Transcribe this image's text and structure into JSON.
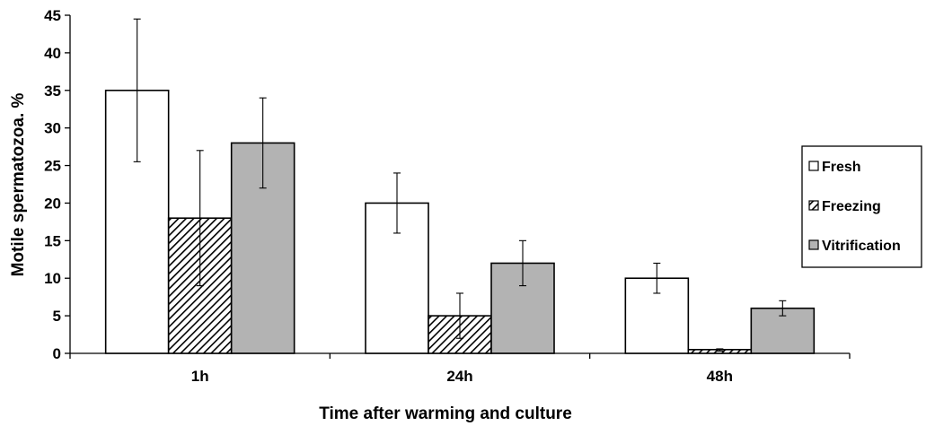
{
  "chart_data": {
    "type": "bar",
    "title": "",
    "xlabel": "Time after warming and culture",
    "ylabel": "Motile spermatozoa. %",
    "ylim": [
      0,
      45
    ],
    "yticks": [
      "0",
      "5",
      "10",
      "15",
      "20",
      "25",
      "30",
      "35",
      "40",
      "45"
    ],
    "categories": [
      "1h",
      "24h",
      "48h"
    ],
    "series": [
      {
        "name": "Fresh",
        "values": [
          35,
          20,
          10
        ],
        "error": [
          [
            25.5,
            44.5
          ],
          [
            16,
            24
          ],
          [
            8,
            12
          ]
        ],
        "fill": "#ffffff",
        "pattern": "none"
      },
      {
        "name": "Freezing",
        "values": [
          18,
          5,
          0.5
        ],
        "error": [
          [
            9,
            27
          ],
          [
            2,
            8
          ],
          [
            0.3,
            0.6
          ]
        ],
        "fill": "#ffffff",
        "pattern": "diagonal-hatch"
      },
      {
        "name": "Vitrification",
        "values": [
          28,
          12,
          6
        ],
        "error": [
          [
            22,
            34
          ],
          [
            9,
            15
          ],
          [
            5,
            7
          ]
        ],
        "fill": "#b3b3b3",
        "pattern": "none"
      }
    ],
    "grid": false,
    "legend_position": "right",
    "colors": {
      "axis": "#000000",
      "bar_stroke": "#000000",
      "vitrification": "#b3b3b3",
      "hatch": "#000000"
    }
  }
}
